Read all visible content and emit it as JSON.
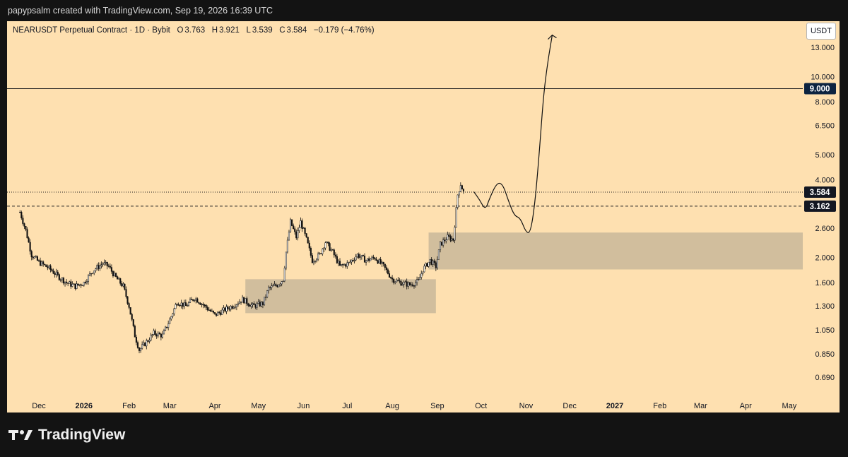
{
  "header": {
    "credit": "papypsalm created with TradingView.com, Sep 19, 2026 16:39 UTC"
  },
  "legend": {
    "symbol": "NEARUSDT Perpetual Contract · 1D · Bybit",
    "open_label": "O",
    "open": "3.763",
    "high_label": "H",
    "high": "3.921",
    "low_label": "L",
    "low": "3.539",
    "close_label": "C",
    "close": "3.584",
    "change": "−0.179 (−4.76%)"
  },
  "price_scale": {
    "currency": "USDT"
  },
  "footer": {
    "brand": "TradingView"
  },
  "colors": {
    "background": "#fee0b0",
    "candle": "#111111",
    "zone": "#c9b79a",
    "frame": "#131313",
    "label_dark": "#131722",
    "label_navy": "#0c2340"
  },
  "chart_data": {
    "type": "candlestick",
    "scale": "log",
    "ylim": [
      0.6,
      15.8
    ],
    "y_ticks": [
      "13.000",
      "10.000",
      "8.000",
      "6.500",
      "5.000",
      "4.000",
      "2.600",
      "2.000",
      "1.600",
      "1.300",
      "1.050",
      "0.850",
      "0.690"
    ],
    "x_ticks": [
      {
        "label": "Dec",
        "date": "2025-12-01",
        "bold": false
      },
      {
        "label": "2026",
        "date": "2026-01-01",
        "bold": true
      },
      {
        "label": "Feb",
        "date": "2026-02-01",
        "bold": false
      },
      {
        "label": "Mar",
        "date": "2026-03-01",
        "bold": false
      },
      {
        "label": "Apr",
        "date": "2026-04-01",
        "bold": false
      },
      {
        "label": "May",
        "date": "2026-05-01",
        "bold": false
      },
      {
        "label": "Jun",
        "date": "2026-06-01",
        "bold": false
      },
      {
        "label": "Jul",
        "date": "2026-07-01",
        "bold": false
      },
      {
        "label": "Aug",
        "date": "2026-08-01",
        "bold": false
      },
      {
        "label": "Sep",
        "date": "2026-09-01",
        "bold": false
      },
      {
        "label": "Oct",
        "date": "2026-10-01",
        "bold": false
      },
      {
        "label": "Nov",
        "date": "2026-11-01",
        "bold": false
      },
      {
        "label": "Dec",
        "date": "2026-12-01",
        "bold": false
      },
      {
        "label": "2027",
        "date": "2027-01-01",
        "bold": true
      },
      {
        "label": "Feb",
        "date": "2027-02-01",
        "bold": false
      },
      {
        "label": "Mar",
        "date": "2027-03-01",
        "bold": false
      },
      {
        "label": "Apr",
        "date": "2027-04-01",
        "bold": false
      },
      {
        "label": "May",
        "date": "2027-05-01",
        "bold": false
      }
    ],
    "close_path": [
      [
        "2025-11-18",
        3.0
      ],
      [
        "2025-11-22",
        2.55
      ],
      [
        "2025-11-26",
        2.05
      ],
      [
        "2025-12-01",
        1.92
      ],
      [
        "2025-12-08",
        1.82
      ],
      [
        "2025-12-14",
        1.7
      ],
      [
        "2025-12-20",
        1.6
      ],
      [
        "2025-12-26",
        1.55
      ],
      [
        "2026-01-01",
        1.6
      ],
      [
        "2026-01-07",
        1.78
      ],
      [
        "2026-01-14",
        1.9
      ],
      [
        "2026-01-18",
        1.85
      ],
      [
        "2026-01-22",
        1.7
      ],
      [
        "2026-01-28",
        1.55
      ],
      [
        "2026-02-01",
        1.3
      ],
      [
        "2026-02-05",
        1.0
      ],
      [
        "2026-02-08",
        0.88
      ],
      [
        "2026-02-12",
        0.93
      ],
      [
        "2026-02-18",
        1.02
      ],
      [
        "2026-02-24",
        1.0
      ],
      [
        "2026-03-01",
        1.15
      ],
      [
        "2026-03-06",
        1.35
      ],
      [
        "2026-03-12",
        1.3
      ],
      [
        "2026-03-18",
        1.4
      ],
      [
        "2026-03-25",
        1.3
      ],
      [
        "2026-04-01",
        1.2
      ],
      [
        "2026-04-07",
        1.25
      ],
      [
        "2026-04-13",
        1.3
      ],
      [
        "2026-04-20",
        1.38
      ],
      [
        "2026-04-27",
        1.3
      ],
      [
        "2026-05-04",
        1.33
      ],
      [
        "2026-05-08",
        1.52
      ],
      [
        "2026-05-14",
        1.57
      ],
      [
        "2026-05-18",
        1.65
      ],
      [
        "2026-05-20",
        2.1
      ],
      [
        "2026-05-23",
        2.75
      ],
      [
        "2026-05-27",
        2.4
      ],
      [
        "2026-05-30",
        2.75
      ],
      [
        "2026-06-03",
        2.35
      ],
      [
        "2026-06-07",
        1.95
      ],
      [
        "2026-06-12",
        2.05
      ],
      [
        "2026-06-16",
        2.3
      ],
      [
        "2026-06-21",
        2.1
      ],
      [
        "2026-06-26",
        1.85
      ],
      [
        "2026-07-02",
        1.9
      ],
      [
        "2026-07-08",
        2.05
      ],
      [
        "2026-07-14",
        1.95
      ],
      [
        "2026-07-20",
        2.0
      ],
      [
        "2026-07-26",
        1.85
      ],
      [
        "2026-08-01",
        1.65
      ],
      [
        "2026-08-07",
        1.6
      ],
      [
        "2026-08-13",
        1.57
      ],
      [
        "2026-08-19",
        1.62
      ],
      [
        "2026-08-22",
        1.8
      ],
      [
        "2026-08-27",
        1.95
      ],
      [
        "2026-08-31",
        1.85
      ],
      [
        "2026-09-03",
        2.25
      ],
      [
        "2026-09-08",
        2.4
      ],
      [
        "2026-09-12",
        2.35
      ],
      [
        "2026-09-15",
        3.5
      ],
      [
        "2026-09-17",
        3.85
      ],
      [
        "2026-09-19",
        3.584
      ]
    ],
    "zones": [
      {
        "from": "2026-04-22",
        "to": "2026-08-31",
        "low": 1.22,
        "high": 1.65
      },
      {
        "from": "2026-08-26",
        "to": "2027-05-12",
        "low": 1.8,
        "high": 2.5
      }
    ],
    "horizontal_lines": [
      {
        "value": 9.0,
        "style": "solid",
        "label": "9.000"
      },
      {
        "value": 3.162,
        "style": "dashed",
        "label": "3.162"
      },
      {
        "value": 3.584,
        "style": "dotted",
        "label": "3.584"
      }
    ],
    "projection": [
      [
        "2026-09-26",
        3.6
      ],
      [
        "2026-09-30",
        3.35
      ],
      [
        "2026-10-04",
        3.05
      ],
      [
        "2026-10-07",
        3.4
      ],
      [
        "2026-10-12",
        3.9
      ],
      [
        "2026-10-16",
        3.85
      ],
      [
        "2026-10-20",
        3.3
      ],
      [
        "2026-10-24",
        2.9
      ],
      [
        "2026-10-28",
        2.85
      ],
      [
        "2026-11-01",
        2.5
      ],
      [
        "2026-11-04",
        2.5
      ],
      [
        "2026-11-07",
        3.2
      ],
      [
        "2026-11-10",
        5.0
      ],
      [
        "2026-11-13",
        8.5
      ],
      [
        "2026-11-16",
        11.5
      ],
      [
        "2026-11-19",
        14.5
      ]
    ]
  }
}
